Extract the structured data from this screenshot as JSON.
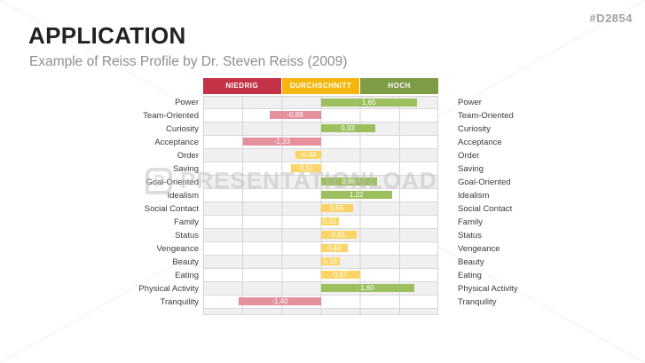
{
  "slide": {
    "tag": "#D2854",
    "title": "APPLICATION",
    "subtitle": "Example of Reiss Profile by Dr. Steven Reiss (2009)",
    "watermark_text": "PRESENTATIONLOAD",
    "watermark_logo_letter": "P"
  },
  "chart": {
    "zones": [
      {
        "id": "niedrig",
        "label": "NIEDRIG",
        "header_color": "#c53246",
        "bar_color": "#e4909d"
      },
      {
        "id": "durchschnitt",
        "label": "DURCHSCHNITT",
        "header_color": "#f5b70c",
        "bar_color": "#fcd465"
      },
      {
        "id": "hoch",
        "label": "HOCH",
        "header_color": "#7e9b46",
        "bar_color": "#9dbf5e"
      }
    ],
    "xlim": [
      -2,
      2
    ],
    "rows": [
      {
        "label": "Power",
        "value": 1.65,
        "display": "1,65",
        "zone": "hoch"
      },
      {
        "label": "Team-Oriented",
        "value": -0.88,
        "display": "-0,88",
        "zone": "niedrig"
      },
      {
        "label": "Curiosity",
        "value": 0.93,
        "display": "0,93",
        "zone": "hoch"
      },
      {
        "label": "Acceptance",
        "value": -1.33,
        "display": "-1,33",
        "zone": "niedrig"
      },
      {
        "label": "Order",
        "value": -0.44,
        "display": "-0,44",
        "zone": "durchschnitt"
      },
      {
        "label": "Saving",
        "value": -0.51,
        "display": "-0,51",
        "zone": "durchschnitt"
      },
      {
        "label": "Goal-Oriented",
        "value": 0.96,
        "display": "0,96",
        "zone": "hoch"
      },
      {
        "label": "Idealism",
        "value": 1.22,
        "display": "1,22",
        "zone": "hoch"
      },
      {
        "label": "Social Contact",
        "value": 0.55,
        "display": "0,55",
        "zone": "durchschnitt"
      },
      {
        "label": "Family",
        "value": 0.31,
        "display": "0,31",
        "zone": "durchschnitt"
      },
      {
        "label": "Status",
        "value": 0.61,
        "display": "0,61",
        "zone": "durchschnitt"
      },
      {
        "label": "Vengeance",
        "value": 0.46,
        "display": "0,46",
        "zone": "durchschnitt"
      },
      {
        "label": "Beauty",
        "value": 0.33,
        "display": "0,33",
        "zone": "durchschnitt"
      },
      {
        "label": "Eating",
        "value": 0.67,
        "display": "0,67",
        "zone": "durchschnitt"
      },
      {
        "label": "Physical Activity",
        "value": 1.6,
        "display": "1,60",
        "zone": "hoch"
      },
      {
        "label": "Tranquility",
        "value": -1.4,
        "display": "-1,40",
        "zone": "niedrig"
      }
    ]
  },
  "chart_data": {
    "type": "bar",
    "orientation": "horizontal",
    "title": "Example of Reiss Profile by Dr. Steven Reiss (2009)",
    "categories": [
      "Power",
      "Team-Oriented",
      "Curiosity",
      "Acceptance",
      "Order",
      "Saving",
      "Goal-Oriented",
      "Idealism",
      "Social Contact",
      "Family",
      "Status",
      "Vengeance",
      "Beauty",
      "Eating",
      "Physical Activity",
      "Tranquility"
    ],
    "values": [
      1.65,
      -0.88,
      0.93,
      -1.33,
      -0.44,
      -0.51,
      0.96,
      1.22,
      0.55,
      0.31,
      0.61,
      0.46,
      0.33,
      0.67,
      1.6,
      -1.4
    ],
    "value_labels": [
      "1,65",
      "-0,88",
      "0,93",
      "-1,33",
      "-0,44",
      "-0,51",
      "0,96",
      "1,22",
      "0,55",
      "0,31",
      "0,61",
      "0,46",
      "0,33",
      "0,67",
      "1,60",
      "-1,40"
    ],
    "bar_zone_classification": [
      "hoch",
      "niedrig",
      "hoch",
      "niedrig",
      "durchschnitt",
      "durchschnitt",
      "hoch",
      "hoch",
      "durchschnitt",
      "durchschnitt",
      "durchschnitt",
      "durchschnitt",
      "durchschnitt",
      "durchschnitt",
      "hoch",
      "niedrig"
    ],
    "column_headers": [
      "NIEDRIG",
      "DURCHSCHNITT",
      "HOCH"
    ],
    "xlim": [
      -2,
      2
    ],
    "zero_line_center": true,
    "grid": true,
    "legend_position": "none",
    "row_labels_both_sides": true
  }
}
